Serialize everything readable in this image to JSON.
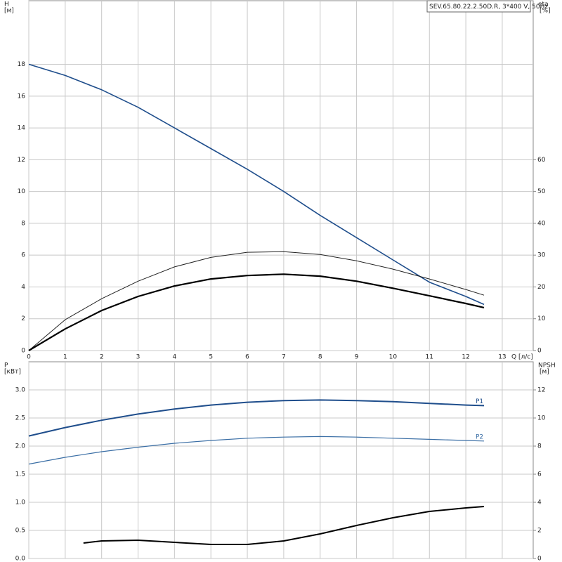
{
  "chart_data": [
    {
      "type": "line",
      "title": "SEV.65.80.22.2.50D.R, 3*400 V, 50Hz",
      "x_label": "Q",
      "x_unit": "[л/с]",
      "y_label": "H",
      "y_unit": "[м]",
      "y2_label": "eta",
      "y2_unit": "[%]",
      "x": [
        0,
        1,
        2,
        3,
        4,
        5,
        6,
        7,
        8,
        9,
        10,
        11,
        12,
        12.5
      ],
      "xlim": [
        0,
        13.85
      ],
      "xticks": [
        0,
        1,
        2,
        3,
        4,
        5,
        6,
        7,
        8,
        9,
        10,
        11,
        12,
        13
      ],
      "ylim": [
        0,
        22
      ],
      "yticks": [
        0,
        2,
        4,
        6,
        8,
        10,
        12,
        14,
        16,
        18
      ],
      "y2lim": [
        0,
        110
      ],
      "y2ticks": [
        0,
        10,
        20,
        30,
        40,
        50,
        60
      ],
      "grid": true,
      "xtick_labels": true,
      "series": [
        {
          "color": "#1f4e8c",
          "line_width": 1.6,
          "values": [
            18,
            17.3,
            16.4,
            15.3,
            14.0,
            12.7,
            11.4,
            10.0,
            8.5,
            7.1,
            5.7,
            4.3,
            3.4,
            2.9
          ]
        },
        {
          "color": "#222222",
          "line_width": 1,
          "axis": "y2",
          "values": [
            0,
            9.7,
            16.3,
            21.8,
            26.3,
            29.3,
            30.9,
            31.1,
            30.2,
            28.2,
            25.6,
            22.5,
            19.2,
            17.4
          ]
        },
        {
          "color": "#000000",
          "line_width": 2.2,
          "axis": "y2",
          "values": [
            0,
            6.8,
            12.6,
            17.0,
            20.3,
            22.5,
            23.6,
            24.0,
            23.4,
            21.8,
            19.6,
            17.2,
            14.8,
            13.5
          ]
        }
      ]
    },
    {
      "type": "line",
      "y_label": "P",
      "y_unit": "[кВт]",
      "y2_label": "NPSH",
      "y2_unit": "[м]",
      "x": [
        0,
        1,
        2,
        3,
        4,
        5,
        6,
        7,
        8,
        9,
        10,
        11,
        12,
        12.5
      ],
      "xlim": [
        0,
        13.85
      ],
      "xticks": [
        0,
        1,
        2,
        3,
        4,
        5,
        6,
        7,
        8,
        9,
        10,
        11,
        12,
        13
      ],
      "ylim": [
        0,
        3.5
      ],
      "yticks": [
        {
          "value": 0,
          "label": "0.0"
        },
        0.5,
        {
          "value": 1,
          "label": "1.0"
        },
        1.5,
        {
          "value": 2,
          "label": "2.0"
        },
        2.5,
        {
          "value": 3,
          "label": "3.0"
        }
      ],
      "y2lim": [
        0,
        14
      ],
      "y2ticks": [
        0,
        2,
        4,
        6,
        8,
        10,
        12
      ],
      "grid": true,
      "xtick_labels": false,
      "series": [
        {
          "name": "P1",
          "color": "#1f4e8c",
          "line_width": 2,
          "values": [
            2.18,
            2.33,
            2.46,
            2.57,
            2.66,
            2.73,
            2.78,
            2.81,
            2.82,
            2.81,
            2.79,
            2.76,
            2.73,
            2.72
          ]
        },
        {
          "name": "P2",
          "color": "#3a6ea5",
          "line_width": 1.2,
          "values": [
            1.68,
            1.8,
            1.9,
            1.98,
            2.05,
            2.1,
            2.14,
            2.16,
            2.17,
            2.16,
            2.14,
            2.12,
            2.1,
            2.09
          ]
        },
        {
          "color": "#000000",
          "line_width": 2,
          "axis": "y2",
          "x": [
            1.5,
            2,
            3,
            4,
            5,
            6,
            7,
            8,
            9,
            10,
            11,
            12,
            12.5
          ],
          "values": [
            1.1,
            1.25,
            1.3,
            1.15,
            1.0,
            1.0,
            1.25,
            1.75,
            2.35,
            2.9,
            3.35,
            3.6,
            3.7
          ]
        }
      ]
    }
  ]
}
